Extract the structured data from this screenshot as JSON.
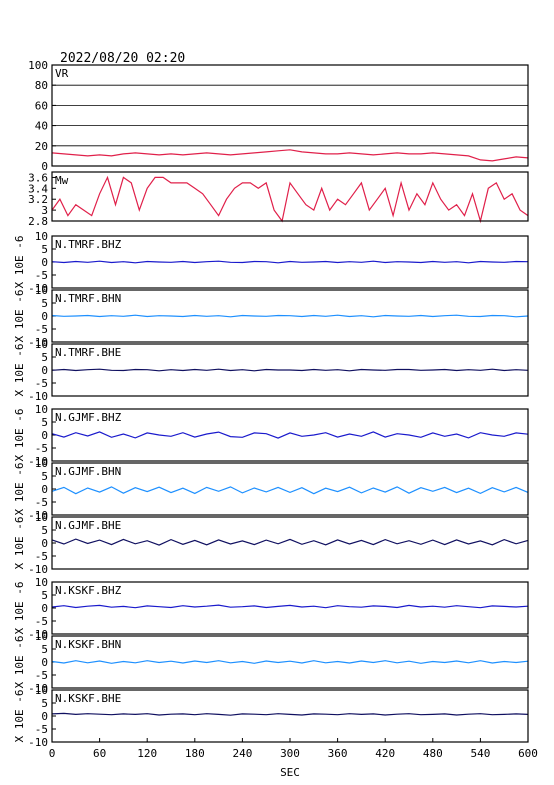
{
  "chart_data": [
    {
      "type": "line",
      "title": "2022/08/20 02:20",
      "label": "VR",
      "color": "#e0204a",
      "xlim": [
        0,
        600
      ],
      "ylim": [
        0,
        100
      ],
      "yticks": [
        0,
        20,
        40,
        60,
        80,
        100
      ],
      "grid": true,
      "x": [
        0,
        15,
        30,
        45,
        60,
        75,
        90,
        105,
        120,
        135,
        150,
        165,
        180,
        195,
        210,
        225,
        240,
        255,
        270,
        285,
        300,
        315,
        330,
        345,
        360,
        375,
        390,
        405,
        420,
        435,
        450,
        465,
        480,
        495,
        510,
        525,
        540,
        555,
        570,
        585,
        600
      ],
      "values": [
        13,
        12,
        11,
        10,
        11,
        10,
        12,
        13,
        12,
        11,
        12,
        11,
        12,
        13,
        12,
        11,
        12,
        13,
        14,
        15,
        16,
        14,
        13,
        12,
        12,
        13,
        12,
        11,
        12,
        13,
        12,
        12,
        13,
        12,
        11,
        10,
        6,
        5,
        7,
        9,
        8
      ]
    },
    {
      "type": "line",
      "label": "Mw",
      "color": "#e0204a",
      "xlim": [
        0,
        600
      ],
      "ylim": [
        2.8,
        3.7
      ],
      "yticks": [
        2.8,
        3.0,
        3.2,
        3.4,
        3.6
      ],
      "x": [
        0,
        10,
        20,
        30,
        40,
        50,
        60,
        70,
        80,
        90,
        100,
        110,
        120,
        130,
        140,
        150,
        160,
        170,
        180,
        190,
        200,
        210,
        220,
        230,
        240,
        250,
        260,
        270,
        280,
        290,
        300,
        310,
        320,
        330,
        340,
        350,
        360,
        370,
        380,
        390,
        400,
        410,
        420,
        430,
        440,
        450,
        460,
        470,
        480,
        490,
        500,
        510,
        520,
        530,
        540,
        550,
        560,
        570,
        580,
        590,
        600
      ],
      "values": [
        3.0,
        3.2,
        2.9,
        3.1,
        3.0,
        2.9,
        3.3,
        3.6,
        3.1,
        3.6,
        3.5,
        3.0,
        3.4,
        3.6,
        3.6,
        3.5,
        3.5,
        3.5,
        3.4,
        3.3,
        3.1,
        2.9,
        3.2,
        3.4,
        3.5,
        3.5,
        3.4,
        3.5,
        3.0,
        2.8,
        3.5,
        3.3,
        3.1,
        3.0,
        3.4,
        3.0,
        3.2,
        3.1,
        3.3,
        3.5,
        3.0,
        3.2,
        3.4,
        2.9,
        3.5,
        3.0,
        3.3,
        3.1,
        3.5,
        3.2,
        3.0,
        3.1,
        2.9,
        3.3,
        2.8,
        3.4,
        3.5,
        3.2,
        3.3,
        3.0,
        2.9
      ]
    },
    {
      "type": "line",
      "label": "N.TMRF.BHZ",
      "ylabel": "X 10E -6",
      "color": "#1a1acc",
      "xlim": [
        0,
        600
      ],
      "ylim": [
        -10,
        10
      ],
      "yticks": [
        -10,
        -5,
        0,
        5,
        10
      ],
      "x": [
        0,
        15,
        30,
        45,
        60,
        75,
        90,
        105,
        120,
        135,
        150,
        165,
        180,
        195,
        210,
        225,
        240,
        255,
        270,
        285,
        300,
        315,
        330,
        345,
        360,
        375,
        390,
        405,
        420,
        435,
        450,
        465,
        480,
        495,
        510,
        525,
        540,
        555,
        570,
        585,
        600
      ],
      "values": [
        0.1,
        -0.2,
        0.2,
        -0.1,
        0.3,
        -0.2,
        0.1,
        -0.3,
        0.2,
        0,
        -0.1,
        0.2,
        -0.2,
        0.1,
        0.3,
        -0.1,
        -0.2,
        0.2,
        0.1,
        -0.3,
        0.2,
        -0.1,
        0,
        0.2,
        -0.2,
        0.1,
        -0.1,
        0.3,
        -0.2,
        0.1,
        0,
        -0.2,
        0.2,
        -0.1,
        0.1,
        -0.3,
        0.2,
        0,
        -0.1,
        0.2,
        0.1
      ]
    },
    {
      "type": "line",
      "label": "N.TMRF.BHN",
      "ylabel": "X 10E -6",
      "color": "#1e90ff",
      "xlim": [
        0,
        600
      ],
      "ylim": [
        -10,
        10
      ],
      "yticks": [
        -10,
        -5,
        0,
        5,
        10
      ],
      "x": [
        0,
        15,
        30,
        45,
        60,
        75,
        90,
        105,
        120,
        135,
        150,
        165,
        180,
        195,
        210,
        225,
        240,
        255,
        270,
        285,
        300,
        315,
        330,
        345,
        360,
        375,
        390,
        405,
        420,
        435,
        450,
        465,
        480,
        495,
        510,
        525,
        540,
        555,
        570,
        585,
        600
      ],
      "values": [
        0.2,
        -0.1,
        0,
        0.2,
        -0.2,
        0.1,
        -0.1,
        0.3,
        -0.2,
        0.1,
        0,
        -0.2,
        0.2,
        -0.1,
        0.1,
        -0.3,
        0.2,
        0,
        -0.1,
        0.2,
        0.1,
        -0.2,
        0.2,
        -0.1,
        0.3,
        -0.2,
        0.1,
        -0.3,
        0.2,
        0,
        -0.1,
        0.2,
        -0.2,
        0.1,
        0.3,
        -0.1,
        -0.2,
        0.2,
        0.1,
        -0.3,
        0
      ]
    },
    {
      "type": "line",
      "label": "N.TMRF.BHE",
      "ylabel": "X 10E -6",
      "color": "#101060",
      "xlim": [
        0,
        600
      ],
      "ylim": [
        -10,
        10
      ],
      "yticks": [
        -10,
        -5,
        0,
        5,
        10
      ],
      "x": [
        0,
        15,
        30,
        45,
        60,
        75,
        90,
        105,
        120,
        135,
        150,
        165,
        180,
        195,
        210,
        225,
        240,
        255,
        270,
        285,
        300,
        315,
        330,
        345,
        360,
        375,
        390,
        405,
        420,
        435,
        450,
        465,
        480,
        495,
        510,
        525,
        540,
        555,
        570,
        585,
        600
      ],
      "values": [
        -0.1,
        0.2,
        -0.2,
        0.1,
        0.3,
        -0.1,
        -0.2,
        0.2,
        0.1,
        -0.3,
        0.1,
        -0.2,
        0.2,
        -0.1,
        0.3,
        -0.2,
        0.1,
        -0.3,
        0.2,
        0,
        0,
        -0.2,
        0.2,
        -0.1,
        0.1,
        -0.3,
        0.2,
        0,
        -0.1,
        0.2,
        0.2,
        -0.1,
        0,
        0.2,
        -0.2,
        0.1,
        -0.1,
        0.3,
        -0.2,
        0.1,
        -0.1
      ]
    },
    {
      "type": "line",
      "label": "N.GJMF.BHZ",
      "ylabel": "X 10E -6",
      "color": "#1a1acc",
      "xlim": [
        0,
        600
      ],
      "ylim": [
        -10,
        10
      ],
      "yticks": [
        -10,
        -5,
        0,
        5,
        10
      ],
      "x": [
        0,
        15,
        30,
        45,
        60,
        75,
        90,
        105,
        120,
        135,
        150,
        165,
        180,
        195,
        210,
        225,
        240,
        255,
        270,
        285,
        300,
        315,
        330,
        345,
        360,
        375,
        390,
        405,
        420,
        435,
        450,
        465,
        480,
        495,
        510,
        525,
        540,
        555,
        570,
        585,
        600
      ],
      "values": [
        0.5,
        -0.8,
        0.9,
        -0.4,
        1.2,
        -0.9,
        0.4,
        -1.1,
        0.8,
        0,
        -0.5,
        0.9,
        -0.8,
        0.4,
        1.1,
        -0.6,
        -0.9,
        0.8,
        0.5,
        -1.2,
        0.8,
        -0.5,
        0,
        0.9,
        -0.8,
        0.4,
        -0.5,
        1.2,
        -0.8,
        0.5,
        0,
        -0.9,
        0.8,
        -0.5,
        0.4,
        -1.1,
        0.9,
        0,
        -0.5,
        0.8,
        0.3
      ]
    },
    {
      "type": "line",
      "label": "N.GJMF.BHN",
      "ylabel": "X 10E -6",
      "color": "#1e90ff",
      "xlim": [
        0,
        600
      ],
      "ylim": [
        -10,
        10
      ],
      "yticks": [
        -10,
        -5,
        0,
        5,
        10
      ],
      "x": [
        0,
        15,
        30,
        45,
        60,
        75,
        90,
        105,
        120,
        135,
        150,
        165,
        180,
        195,
        210,
        225,
        240,
        255,
        270,
        285,
        300,
        315,
        330,
        345,
        360,
        375,
        390,
        405,
        420,
        435,
        450,
        465,
        480,
        495,
        510,
        525,
        540,
        555,
        570,
        585,
        600
      ],
      "values": [
        -0.9,
        0.6,
        -1.8,
        0.4,
        -1.2,
        0.8,
        -1.6,
        0.5,
        -1.0,
        0.7,
        -1.4,
        0.3,
        -1.7,
        0.6,
        -0.9,
        0.8,
        -1.5,
        0.4,
        -1.1,
        0.6,
        -1.3,
        0.5,
        -1.8,
        0.3,
        -1.0,
        0.7,
        -1.5,
        0.4,
        -1.2,
        0.8,
        -1.6,
        0.5,
        -0.9,
        0.6,
        -1.4,
        0.3,
        -1.7,
        0.5,
        -1.1,
        0.6,
        -1.3
      ]
    },
    {
      "type": "line",
      "label": "N.GJMF.BHE",
      "ylabel": "X 10E -6",
      "color": "#101060",
      "xlim": [
        0,
        600
      ],
      "ylim": [
        -10,
        10
      ],
      "yticks": [
        -10,
        -5,
        0,
        5,
        10
      ],
      "x": [
        0,
        15,
        30,
        45,
        60,
        75,
        90,
        105,
        120,
        135,
        150,
        165,
        180,
        195,
        210,
        225,
        240,
        255,
        270,
        285,
        300,
        315,
        330,
        345,
        360,
        375,
        390,
        405,
        420,
        435,
        450,
        465,
        480,
        495,
        510,
        525,
        540,
        555,
        570,
        585,
        600
      ],
      "values": [
        1.2,
        -0.4,
        1.5,
        -0.2,
        1.1,
        -0.6,
        1.4,
        -0.3,
        0.9,
        -0.8,
        1.3,
        -0.5,
        1.0,
        -0.7,
        1.2,
        -0.4,
        0.8,
        -0.6,
        1.1,
        -0.3,
        1.4,
        -0.5,
        0.9,
        -0.7,
        1.2,
        -0.4,
        1.0,
        -0.6,
        1.3,
        -0.3,
        0.9,
        -0.5,
        1.1,
        -0.6,
        1.2,
        -0.4,
        0.8,
        -0.7,
        1.3,
        -0.3,
        1.0
      ]
    },
    {
      "type": "line",
      "label": "N.KSKF.BHZ",
      "ylabel": "X 10E -6",
      "color": "#1a1acc",
      "xlim": [
        0,
        600
      ],
      "ylim": [
        -10,
        10
      ],
      "yticks": [
        -10,
        -5,
        0,
        5,
        10
      ],
      "x": [
        0,
        15,
        30,
        45,
        60,
        75,
        90,
        105,
        120,
        135,
        150,
        165,
        180,
        195,
        210,
        225,
        240,
        255,
        270,
        285,
        300,
        315,
        330,
        345,
        360,
        375,
        390,
        405,
        420,
        435,
        450,
        465,
        480,
        495,
        510,
        525,
        540,
        555,
        570,
        585,
        600
      ],
      "values": [
        0.4,
        0.9,
        0.2,
        0.7,
        1.0,
        0.3,
        0.6,
        0.1,
        0.8,
        0.5,
        0.2,
        0.9,
        0.4,
        0.7,
        1.1,
        0.3,
        0.5,
        0.8,
        0.2,
        0.6,
        1.0,
        0.4,
        0.7,
        0.1,
        0.9,
        0.5,
        0.3,
        0.8,
        0.6,
        0.2,
        1.0,
        0.4,
        0.7,
        0.3,
        0.9,
        0.5,
        0.1,
        0.8,
        0.6,
        0.4,
        0.7
      ]
    },
    {
      "type": "line",
      "label": "N.KSKF.BHN",
      "ylabel": "X 10E -6",
      "color": "#1e90ff",
      "xlim": [
        0,
        600
      ],
      "ylim": [
        -10,
        10
      ],
      "yticks": [
        -10,
        -5,
        0,
        5,
        10
      ],
      "x": [
        0,
        15,
        30,
        45,
        60,
        75,
        90,
        105,
        120,
        135,
        150,
        165,
        180,
        195,
        210,
        225,
        240,
        255,
        270,
        285,
        300,
        315,
        330,
        345,
        360,
        375,
        390,
        405,
        420,
        435,
        450,
        465,
        480,
        495,
        510,
        525,
        540,
        555,
        570,
        585,
        600
      ],
      "values": [
        0.2,
        -0.4,
        0.5,
        -0.3,
        0.4,
        -0.5,
        0.2,
        -0.3,
        0.5,
        -0.2,
        0.3,
        -0.4,
        0.4,
        -0.2,
        0.5,
        -0.3,
        0.2,
        -0.5,
        0.4,
        -0.2,
        0.3,
        -0.4,
        0.5,
        -0.3,
        0.2,
        -0.4,
        0.4,
        -0.2,
        0.5,
        -0.3,
        0.3,
        -0.5,
        0.2,
        -0.2,
        0.4,
        -0.3,
        0.5,
        -0.4,
        0.2,
        -0.2,
        0.3
      ]
    },
    {
      "type": "line",
      "label": "N.KSKF.BHE",
      "ylabel": "X 10E -6",
      "color": "#101060",
      "xlim": [
        0,
        600
      ],
      "ylim": [
        -10,
        10
      ],
      "yticks": [
        -10,
        -5,
        0,
        5,
        10
      ],
      "xticks": [
        0,
        60,
        120,
        180,
        240,
        300,
        360,
        420,
        480,
        540,
        600
      ],
      "xlabel": "SEC",
      "x": [
        0,
        15,
        30,
        45,
        60,
        75,
        90,
        105,
        120,
        135,
        150,
        165,
        180,
        195,
        210,
        225,
        240,
        255,
        270,
        285,
        300,
        315,
        330,
        345,
        360,
        375,
        390,
        405,
        420,
        435,
        450,
        465,
        480,
        495,
        510,
        525,
        540,
        555,
        570,
        585,
        600
      ],
      "values": [
        0.8,
        1.0,
        0.6,
        0.9,
        0.7,
        0.5,
        0.8,
        0.6,
        0.9,
        0.4,
        0.7,
        0.8,
        0.5,
        0.9,
        0.6,
        0.3,
        0.8,
        0.7,
        0.5,
        0.9,
        0.6,
        0.4,
        0.8,
        0.7,
        0.5,
        0.9,
        0.6,
        0.8,
        0.4,
        0.7,
        0.9,
        0.5,
        0.6,
        0.8,
        0.4,
        0.7,
        0.9,
        0.5,
        0.6,
        0.8,
        0.6
      ]
    }
  ]
}
